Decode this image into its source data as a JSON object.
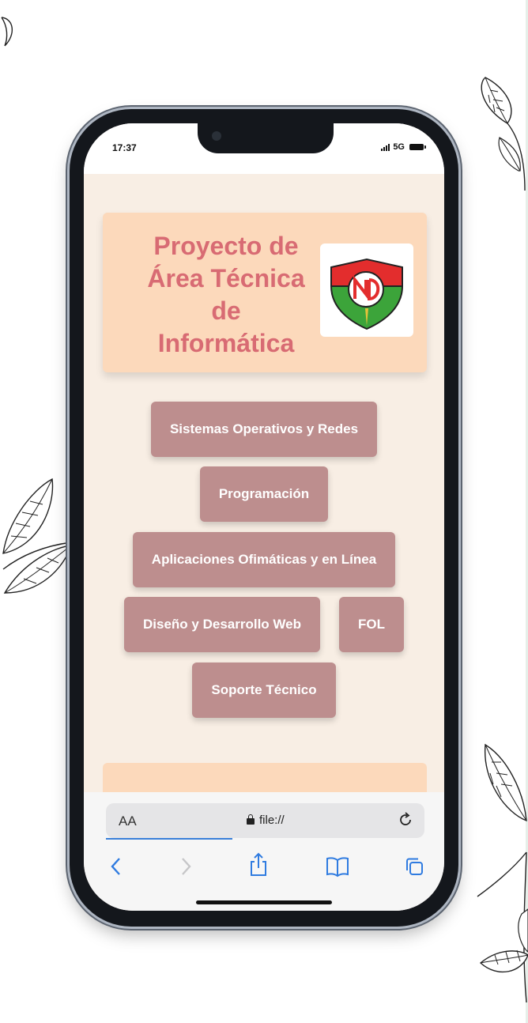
{
  "status_bar": {
    "time": "17:37",
    "network": "5G"
  },
  "header": {
    "title_lines": [
      "Proyecto de",
      "Área Técnica",
      "de",
      "Informática"
    ],
    "logo": "school-crest-logo"
  },
  "nav": {
    "buttons": [
      "Sistemas Operativos y Redes",
      "Programación",
      "Aplicaciones Ofimáticas y en Línea",
      "Diseño y Desarrollo Web",
      "FOL",
      "Soporte Técnico"
    ]
  },
  "browser": {
    "text_size_label": "AA",
    "url": "file://",
    "icons": [
      "back-icon",
      "forward-icon",
      "share-icon",
      "bookmarks-icon",
      "tabs-icon",
      "reload-icon",
      "lock-icon"
    ]
  },
  "colors": {
    "page_bg": "#f8eee4",
    "header_bg": "#fcd9bb",
    "title_color": "#d86b73",
    "button_bg": "#bd8e8e",
    "button_text": "#ffffff",
    "link_blue": "#3a80d9"
  }
}
